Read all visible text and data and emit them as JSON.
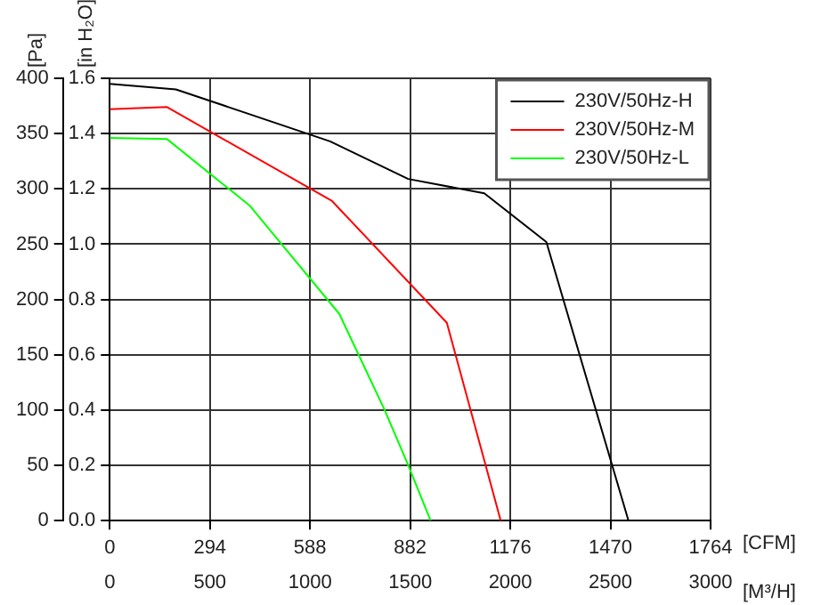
{
  "chart_data": {
    "type": "line",
    "xlabel": "[M³/H]",
    "ylabel": "[Pa]",
    "y2label": "[in H₂O]",
    "x2label": "[CFM]",
    "xlim": [
      0,
      3000
    ],
    "xticks": [
      0,
      500,
      1000,
      1500,
      2000,
      2500,
      3000
    ],
    "x2lim": [
      0,
      1764
    ],
    "x2ticks": [
      0,
      294,
      588,
      882,
      1176,
      1470,
      1764
    ],
    "ylim": [
      0,
      400
    ],
    "yticks": [
      0,
      50,
      100,
      150,
      200,
      250,
      300,
      350,
      400
    ],
    "y2lim": [
      0,
      1.6
    ],
    "y2ticks": [
      {
        "value": 0,
        "label": "0.0"
      },
      0.2,
      0.4,
      0.6,
      0.8,
      {
        "value": 1,
        "label": "1.0"
      },
      1.2,
      1.4,
      1.6
    ],
    "grid": true,
    "legend": "top right",
    "marker": "none",
    "line_style": "solid",
    "series": [
      {
        "name": "230V/50Hz-H",
        "color": "#000000",
        "x": [
          0,
          330,
          1100,
          1490,
          1870,
          2180,
          2590
        ],
        "values": [
          395,
          390,
          343,
          309,
          296,
          252,
          0
        ]
      },
      {
        "name": "230V/50Hz-M",
        "color": "#ff0000",
        "x": [
          0,
          286,
          1110,
          1683,
          1952
        ],
        "values": [
          372,
          374,
          289,
          179,
          0
        ]
      },
      {
        "name": "230V/50Hz-L",
        "color": "#00ff00",
        "x": [
          0,
          286,
          698,
          1146,
          1370,
          1486,
          1602
        ],
        "values": [
          346,
          345,
          285,
          187,
          101,
          52,
          0
        ]
      }
    ]
  }
}
